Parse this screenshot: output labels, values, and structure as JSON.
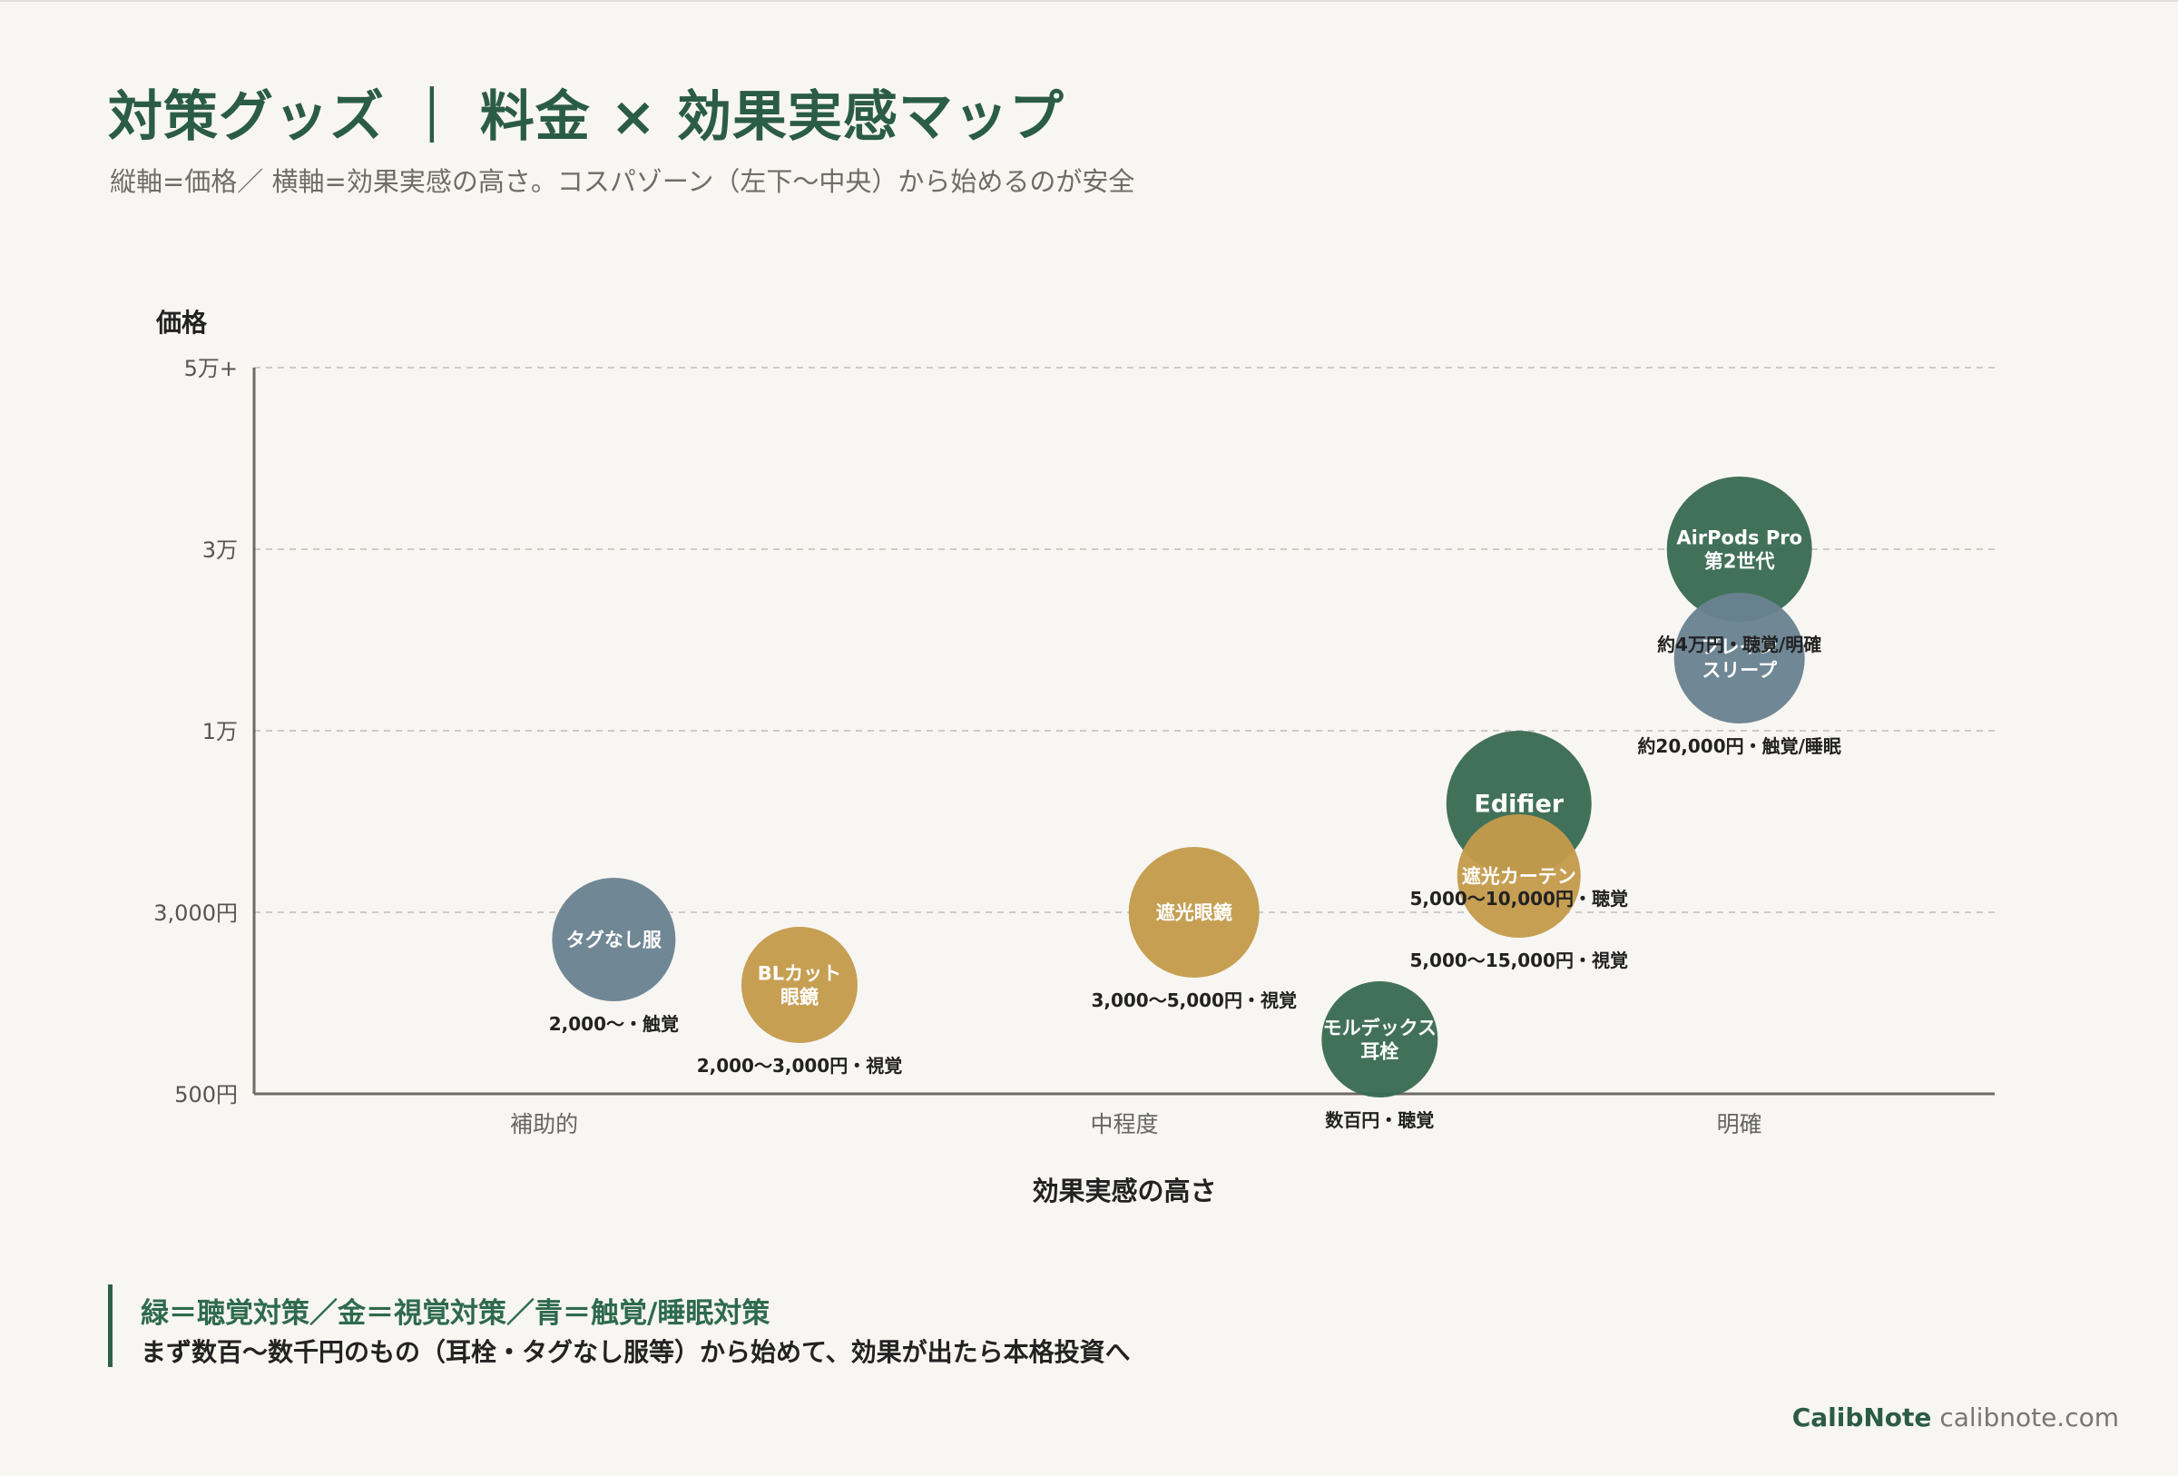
{
  "header": {
    "title": "対策グッズ ｜ 料金 × 効果実感マップ",
    "subtitle": "縦軸=価格／ 横軸=効果実感の高さ。コスパゾーン（左下〜中央）から始めるのが安全"
  },
  "colors": {
    "green": "#3a6b52",
    "gold": "#c49b4c",
    "blue": "#6a8291",
    "title": "#2b5c45"
  },
  "chart_data": {
    "type": "scatter",
    "ylabel": "価格",
    "xlabel": "効果実感の高さ",
    "y_ticks": [
      "500円",
      "3,000円",
      "1万",
      "3万",
      "5万+"
    ],
    "x_ticks": [
      "補助的",
      "中程度",
      "明確"
    ],
    "x_tick_positions": [
      0.5,
      1.5,
      2.56
    ],
    "xlim": [
      0,
      3
    ],
    "ylim": [
      0,
      4
    ],
    "grid": true,
    "points": [
      {
        "name": "タグなし服",
        "x": 0.62,
        "y": 0.85,
        "size": "medium",
        "color": "blue",
        "label": "2,000〜・触覚"
      },
      {
        "name": "BLカット\n眼鏡",
        "x": 0.94,
        "y": 0.6,
        "size": "small",
        "color": "gold",
        "label": "2,000〜3,000円・視覚"
      },
      {
        "name": "遮光眼鏡",
        "x": 1.62,
        "y": 1.0,
        "size": "large",
        "color": "gold",
        "label": "3,000〜5,000円・視覚"
      },
      {
        "name": "モルデックス\n耳栓",
        "x": 1.94,
        "y": 0.3,
        "size": "small",
        "color": "green",
        "label": "数百円・聴覚"
      },
      {
        "name": "Edifier",
        "x": 2.18,
        "y": 1.6,
        "size": "xlarge",
        "color": "green",
        "label": "5,000〜10,000円・聴覚"
      },
      {
        "name": "遮光カーテン",
        "x": 2.18,
        "y": 1.2,
        "size": "medium",
        "color": "gold",
        "label": "5,000〜15,000円・視覚"
      },
      {
        "name": "AirPods Pro\n第2世代",
        "x": 2.56,
        "y": 3.0,
        "size": "xlarge",
        "color": "green",
        "label": "約4万円・聴覚/明確"
      },
      {
        "name": "ブレイン\nスリープ",
        "x": 2.56,
        "y": 2.4,
        "size": "large",
        "color": "blue",
        "label": "約20,000円・触覚/睡眠"
      }
    ]
  },
  "legend": {
    "title": "緑＝聴覚対策／金＝視覚対策／青＝触覚/睡眠対策",
    "note": "まず数百〜数千円のもの（耳栓・タグなし服等）から始めて、効果が出たら本格投資へ"
  },
  "footer": {
    "brand": "CalibNote",
    "domain": "calibnote.com"
  }
}
